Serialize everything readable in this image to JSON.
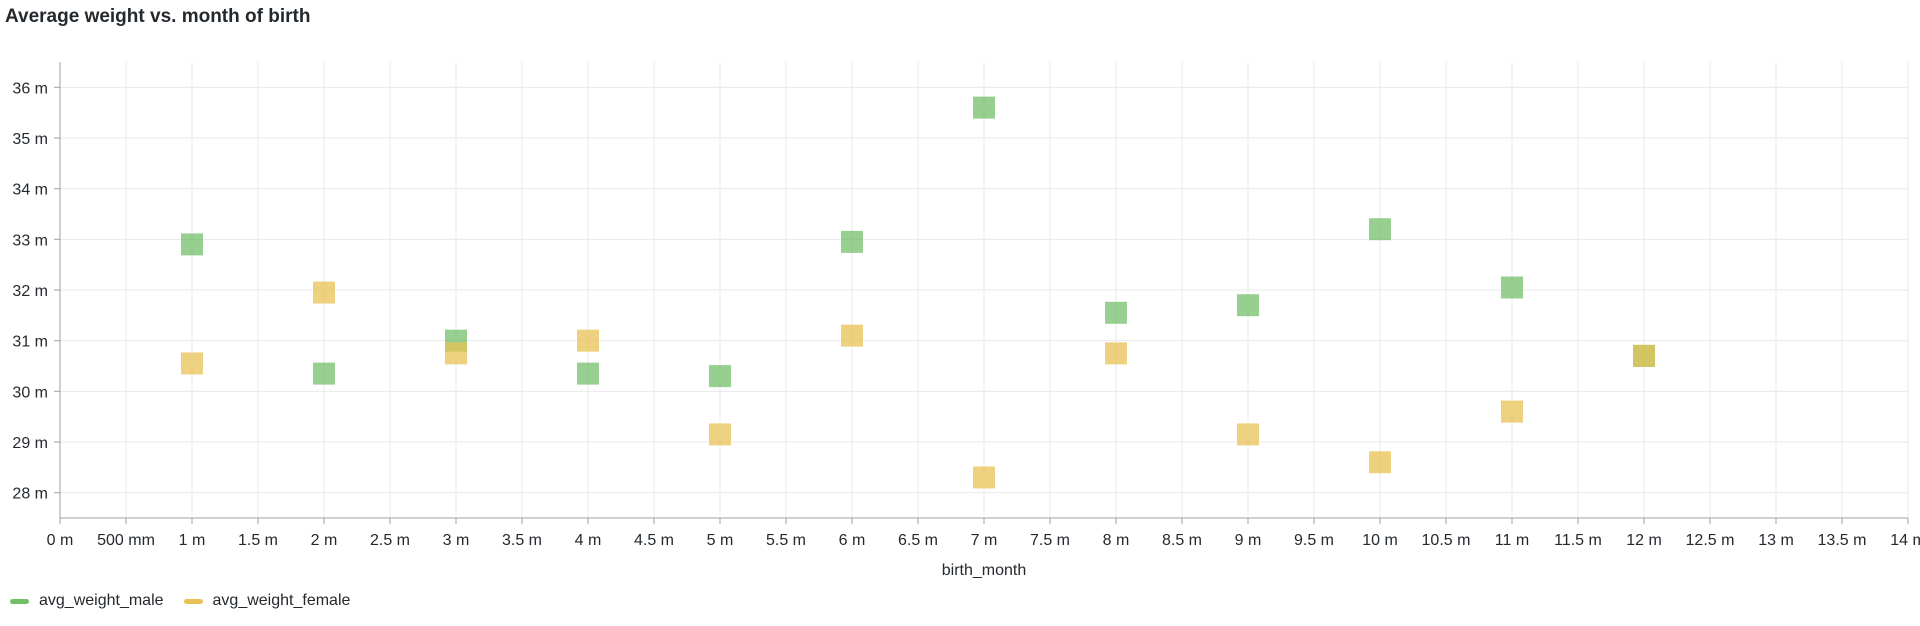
{
  "panel": {
    "title": "Average weight vs. month of birth"
  },
  "chart_data": {
    "type": "scatter",
    "title": "Average weight vs. month of birth",
    "xlabel": "birth_month",
    "ylabel": "",
    "xlim": [
      0,
      14
    ],
    "ylim": [
      27.5,
      36.5
    ],
    "x_ticks": [
      0,
      0.5,
      1,
      1.5,
      2,
      2.5,
      3,
      3.5,
      4,
      4.5,
      5,
      5.5,
      6,
      6.5,
      7,
      7.5,
      8,
      8.5,
      9,
      9.5,
      10,
      10.5,
      11,
      11.5,
      12,
      12.5,
      13,
      13.5,
      14
    ],
    "x_tick_labels": [
      "0 m",
      "500 mm",
      "1 m",
      "1.5 m",
      "2 m",
      "2.5 m",
      "3 m",
      "3.5 m",
      "4 m",
      "4.5 m",
      "5 m",
      "5.5 m",
      "6 m",
      "6.5 m",
      "7 m",
      "7.5 m",
      "8 m",
      "8.5 m",
      "9 m",
      "9.5 m",
      "10 m",
      "10.5 m",
      "11 m",
      "11.5 m",
      "12 m",
      "12.5 m",
      "13 m",
      "13.5 m",
      "14 m"
    ],
    "y_ticks": [
      28,
      29,
      30,
      31,
      32,
      33,
      34,
      35,
      36
    ],
    "y_tick_labels": [
      "28 m",
      "29 m",
      "30 m",
      "31 m",
      "32 m",
      "33 m",
      "34 m",
      "35 m",
      "36 m"
    ],
    "grid": true,
    "legend_position": "bottom-left",
    "series": [
      {
        "name": "avg_weight_male",
        "color": "#73bf69",
        "x": [
          1,
          2,
          3,
          4,
          5,
          6,
          7,
          8,
          9,
          10,
          11,
          12
        ],
        "y": [
          32.9,
          30.35,
          31.0,
          30.35,
          30.3,
          32.95,
          35.6,
          31.55,
          31.7,
          33.2,
          32.05,
          30.7
        ]
      },
      {
        "name": "avg_weight_female",
        "color": "#e8c154",
        "x": [
          1,
          2,
          3,
          4,
          5,
          6,
          7,
          8,
          9,
          10,
          11,
          12
        ],
        "y": [
          30.55,
          31.95,
          30.75,
          31.0,
          29.15,
          31.1,
          28.3,
          30.75,
          29.15,
          28.6,
          29.6,
          30.7
        ]
      }
    ]
  }
}
